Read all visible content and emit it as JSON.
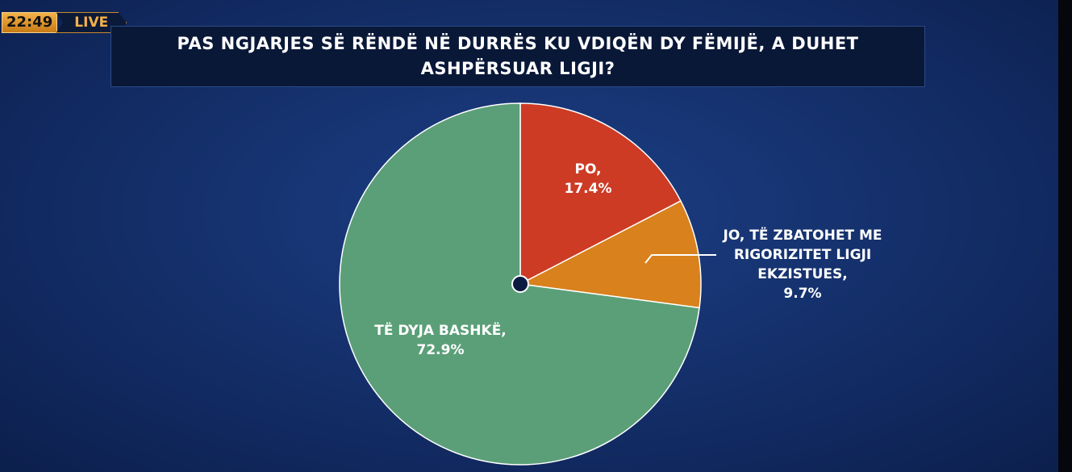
{
  "overlay": {
    "time": "22:49",
    "live": "LIVE"
  },
  "chart_data": {
    "type": "pie",
    "title": "PAS NGJARJES SË RËNDË NË DURRËS KU VDIQËN DY FËMIJË, A DUHET ASHPËRSUAR LIGJI?",
    "categories": [
      "PO,",
      "JO, TË ZBATOHET ME RIGORIZITET LIGJI EKZISTUES,",
      "TË DYJA BASHKË,"
    ],
    "values": [
      17.4,
      9.7,
      72.9
    ],
    "value_labels": [
      "17.4%",
      "9.7%",
      "72.9%"
    ],
    "colors": [
      "#cd3b25",
      "#d8811d",
      "#5b9f79"
    ]
  }
}
